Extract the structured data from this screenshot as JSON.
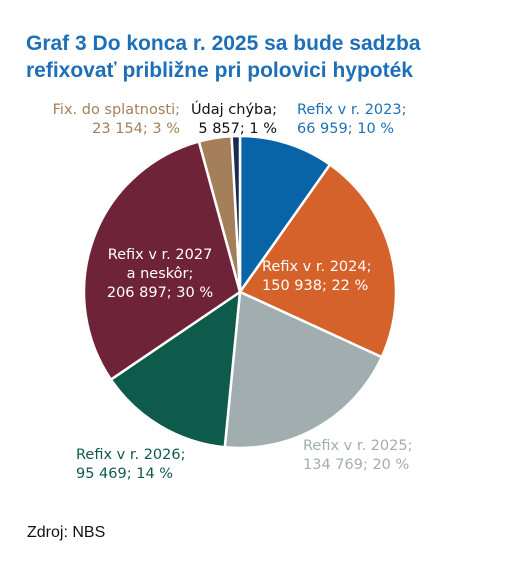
{
  "title_lines": [
    "Graf 3 Do konca r. 2025 sa bude sadzba",
    "refixovať približne pri polovici hypoték"
  ],
  "source": "Zdroj: NBS",
  "chart_data": {
    "type": "pie",
    "title": "Graf 3 Do konca r. 2025 sa bude sadzba refixovať približne pri polovici hypoték",
    "start_angle_deg": 0,
    "direction": "clockwise",
    "slices": [
      {
        "category": "Refix v r. 2023",
        "value": 66959,
        "percent": 10,
        "color": "#0864a7",
        "label_lines": [
          "Refix v r. 2023;",
          "66 959; 10 %"
        ],
        "label_color": "#1d70b7"
      },
      {
        "category": "Refix v r. 2024",
        "value": 150938,
        "percent": 22,
        "color": "#d4622a",
        "label_lines": [
          "Refix v r. 2024;",
          "150 938; 22 %"
        ],
        "label_color": "#ffffff"
      },
      {
        "category": "Refix v r. 2025",
        "value": 134769,
        "percent": 20,
        "color": "#a2adb0",
        "label_lines": [
          "Refix v r. 2025;",
          "134 769; 20 %"
        ],
        "label_color": "#a2adb0"
      },
      {
        "category": "Refix v r. 2026",
        "value": 95469,
        "percent": 14,
        "color": "#0e5a4b",
        "label_lines": [
          "Refix v r. 2026;",
          "95 469; 14 %"
        ],
        "label_color": "#0e5a4b"
      },
      {
        "category": "Refix v r. 2027 a neskôr",
        "value": 206897,
        "percent": 30,
        "color": "#6e2339",
        "label_lines": [
          "Refix v r. 2027",
          "a neskôr;",
          "206 897; 30 %"
        ],
        "label_color": "#ffffff"
      },
      {
        "category": "Fix. do splatnosti",
        "value": 23154,
        "percent": 3,
        "color": "#a57f5a",
        "label_lines": [
          "Fix. do splatnosti;",
          "23 154; 3 %"
        ],
        "label_color": "#a57f5a"
      },
      {
        "category": "Údaj chýba",
        "value": 5857,
        "percent": 1,
        "color": "#1b2a55",
        "label_lines": [
          "Údaj chýba;",
          "5 857; 1 %"
        ],
        "label_color": "#111111"
      }
    ]
  }
}
